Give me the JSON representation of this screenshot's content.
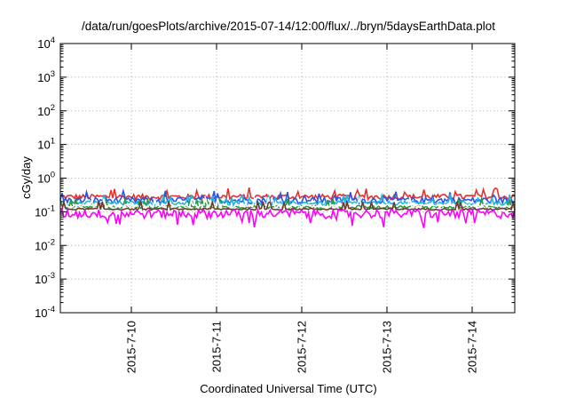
{
  "chart_data": {
    "type": "line",
    "title": "/data/run/goesPlots/archive/2015-07-14/12:00/flux/../bryn/5daysEarthData.plot",
    "xlabel": "Coordinated Universal Time (UTC)",
    "ylabel": "cGy/day",
    "yscale": "log",
    "ylim": [
      0.0001,
      10000
    ],
    "y_ticks": [
      {
        "value": 0.0001,
        "mantissa": "10",
        "exponent": "-4"
      },
      {
        "value": 0.001,
        "mantissa": "10",
        "exponent": "-3"
      },
      {
        "value": 0.01,
        "mantissa": "10",
        "exponent": "-2"
      },
      {
        "value": 0.1,
        "mantissa": "10",
        "exponent": "-1"
      },
      {
        "value": 1,
        "mantissa": "10",
        "exponent": "0"
      },
      {
        "value": 10,
        "mantissa": "10",
        "exponent": "1"
      },
      {
        "value": 100,
        "mantissa": "10",
        "exponent": "2"
      },
      {
        "value": 1000,
        "mantissa": "10",
        "exponent": "3"
      },
      {
        "value": 10000,
        "mantissa": "10",
        "exponent": "4"
      }
    ],
    "xlim": [
      "2015-07-09T04:00",
      "2015-07-14T12:00"
    ],
    "x_ticks": [
      {
        "date": "2015-07-10T00:00",
        "label": "2015-7-10"
      },
      {
        "date": "2015-07-11T00:00",
        "label": "2015-7-11"
      },
      {
        "date": "2015-07-12T00:00",
        "label": "2015-7-12"
      },
      {
        "date": "2015-07-13T00:00",
        "label": "2015-7-13"
      },
      {
        "date": "2015-07-14T00:00",
        "label": "2015-7-14"
      }
    ],
    "grid": true,
    "series": [
      {
        "color": "#e8302a",
        "level": 0.28,
        "spread": 0.18
      },
      {
        "color": "#2a55e8",
        "level": 0.22,
        "spread": 0.22
      },
      {
        "color": "#20b8d8",
        "level": 0.18,
        "spread": 0.15
      },
      {
        "color": "#2a9a40",
        "level": 0.14,
        "spread": 0.1
      },
      {
        "color": "#ffffff",
        "level": 0.15,
        "spread": 0.12
      },
      {
        "color": "#6b3a2a",
        "level": 0.12,
        "spread": 0.06
      },
      {
        "color": "#ff00ff",
        "level": 0.09,
        "spread": 0.3
      }
    ]
  }
}
